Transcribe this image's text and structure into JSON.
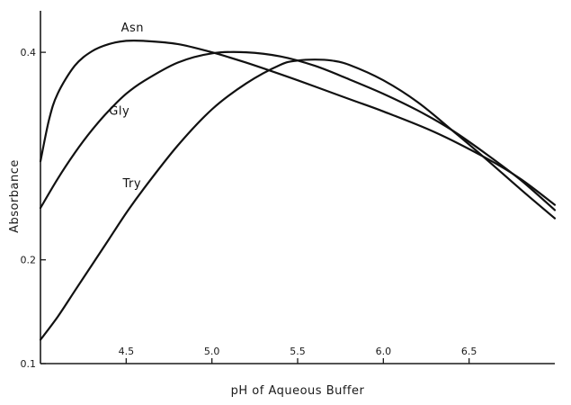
{
  "chart_data": {
    "type": "line",
    "xlabel": "pH of Aqueous Buffer",
    "ylabel": "Absorbance",
    "xlim": [
      4.0,
      7.0
    ],
    "ylim": [
      0.1,
      0.44
    ],
    "x_ticks": [
      {
        "value": 4.5,
        "label": "4.5"
      },
      {
        "value": 5.0,
        "label": "5.0"
      },
      {
        "value": 5.5,
        "label": "5.5"
      },
      {
        "value": 6.0,
        "label": "6.0"
      },
      {
        "value": 6.5,
        "label": "6.5"
      }
    ],
    "y_ticks": [
      {
        "value": 0.1,
        "label": "0.1"
      },
      {
        "value": 0.2,
        "label": "0.2"
      },
      {
        "value": 0.4,
        "label": "0.4"
      }
    ],
    "series": [
      {
        "name": "Asn",
        "x": [
          4.0,
          4.05,
          4.1,
          4.2,
          4.3,
          4.4,
          4.5,
          4.6,
          4.8,
          5.0,
          5.2,
          5.5,
          5.8,
          6.0,
          6.3,
          6.6,
          6.8,
          7.0
        ],
        "y": [
          0.295,
          0.335,
          0.36,
          0.387,
          0.401,
          0.408,
          0.411,
          0.411,
          0.408,
          0.4,
          0.39,
          0.373,
          0.355,
          0.343,
          0.323,
          0.298,
          0.278,
          0.253
        ]
      },
      {
        "name": "Gly",
        "x": [
          4.0,
          4.1,
          4.2,
          4.3,
          4.4,
          4.5,
          4.6,
          4.8,
          5.0,
          5.2,
          5.4,
          5.6,
          5.8,
          6.0,
          6.2,
          6.4,
          6.6,
          6.8,
          7.0
        ],
        "y": [
          0.25,
          0.278,
          0.303,
          0.325,
          0.344,
          0.36,
          0.372,
          0.39,
          0.399,
          0.4,
          0.396,
          0.387,
          0.374,
          0.36,
          0.344,
          0.325,
          0.302,
          0.277,
          0.248
        ]
      },
      {
        "name": "Try",
        "x": [
          4.0,
          4.1,
          4.2,
          4.3,
          4.4,
          4.5,
          4.6,
          4.8,
          5.0,
          5.2,
          5.4,
          5.5,
          5.6,
          5.7,
          5.8,
          6.0,
          6.2,
          6.4,
          6.6,
          6.8,
          7.0
        ],
        "y": [
          0.123,
          0.145,
          0.17,
          0.195,
          0.22,
          0.245,
          0.268,
          0.31,
          0.345,
          0.37,
          0.388,
          0.392,
          0.393,
          0.392,
          0.388,
          0.373,
          0.352,
          0.325,
          0.297,
          0.268,
          0.24
        ]
      }
    ],
    "series_labels": [
      {
        "name": "Asn",
        "x": 4.47,
        "y": 0.42
      },
      {
        "name": "Gly",
        "x": 4.4,
        "y": 0.34
      },
      {
        "name": "Try",
        "x": 4.48,
        "y": 0.27
      }
    ],
    "grid": false,
    "legend": "none"
  }
}
